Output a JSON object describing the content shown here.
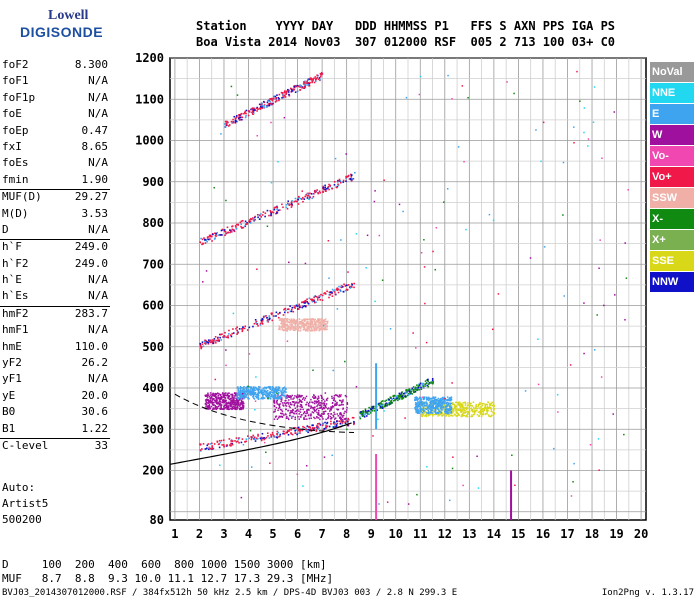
{
  "logo": {
    "line1": "Lowell",
    "line2": "DIGISONDE"
  },
  "header": {
    "line1": "Station    YYYY DAY   DDD HHMMSS P1   FFS S AXN PPS IGA PS",
    "line2": "Boa Vista 2014 Nov03  307 012000 RSF  005 2 713 100 03+ C0"
  },
  "params": [
    {
      "k": "foF2",
      "v": "8.300"
    },
    {
      "k": "foF1",
      "v": "N/A"
    },
    {
      "k": "foF1p",
      "v": "N/A"
    },
    {
      "k": "foE",
      "v": "N/A"
    },
    {
      "k": "foEp",
      "v": "0.47"
    },
    {
      "k": "fxI",
      "v": "8.65"
    },
    {
      "k": "foEs",
      "v": "N/A"
    },
    {
      "k": "fmin",
      "v": "1.90"
    },
    {
      "k": "MUF(D)",
      "v": "29.27"
    },
    {
      "k": "M(D)",
      "v": "3.53"
    },
    {
      "k": "D",
      "v": "N/A"
    },
    {
      "k": "h`F",
      "v": "249.0"
    },
    {
      "k": "h`F2",
      "v": "249.0"
    },
    {
      "k": "h`E",
      "v": "N/A"
    },
    {
      "k": "h`Es",
      "v": "N/A"
    },
    {
      "k": "hmF2",
      "v": "283.7"
    },
    {
      "k": "hmF1",
      "v": "N/A"
    },
    {
      "k": "hmE",
      "v": "110.0"
    },
    {
      "k": "yF2",
      "v": "26.2"
    },
    {
      "k": "yF1",
      "v": "N/A"
    },
    {
      "k": "yE",
      "v": "20.0"
    },
    {
      "k": "B0",
      "v": "30.6"
    },
    {
      "k": "B1",
      "v": "1.22"
    },
    {
      "k": "C-level",
      "v": "33"
    }
  ],
  "auto": {
    "l1": "Auto:",
    "l2": "Artist5",
    "l3": "500200"
  },
  "legend": [
    {
      "label": "NoVal",
      "color": "#999999"
    },
    {
      "label": "NNE",
      "color": "#22d8f0"
    },
    {
      "label": "E",
      "color": "#3fa4f0"
    },
    {
      "label": "W",
      "color": "#a0109e"
    },
    {
      "label": "Vo-",
      "color": "#f048b0"
    },
    {
      "label": "Vo+",
      "color": "#f01848"
    },
    {
      "label": "SSW",
      "color": "#f0b0a8"
    },
    {
      "label": "X-",
      "color": "#108a10"
    },
    {
      "label": "X+",
      "color": "#7ab050"
    },
    {
      "label": "SSE",
      "color": "#d8d818"
    },
    {
      "label": "NNW",
      "color": "#1010c8"
    }
  ],
  "muf_table": {
    "row1": "D     100  200  400  600  800 1000 1500 3000 [km]",
    "row2": "MUF   8.7  8.8  9.3 10.0 11.1 12.7 17.3 29.3 [MHz]"
  },
  "footer": "BVJ03_2014307012000.RSF / 384fx512h 50 kHz 2.5 km / DPS-4D BVJ03 003 / 2.8 N 299.3 E",
  "version": "Ion2Png v. 1.3.17",
  "chart_data": {
    "type": "scatter",
    "x_ticks": [
      1,
      2,
      3,
      4,
      5,
      6,
      7,
      8,
      9,
      10,
      11,
      12,
      13,
      14,
      15,
      16,
      17,
      18,
      19,
      20
    ],
    "y_ticks": [
      80,
      200,
      300,
      400,
      500,
      600,
      700,
      800,
      900,
      1000,
      1100,
      1200
    ],
    "xlim": [
      0.8,
      20.2
    ],
    "ylim": [
      80,
      1200
    ],
    "grid": true,
    "traces": [
      {
        "color": "#f01848",
        "segments": [
          [
            2.0,
            258,
            8.3,
            322
          ],
          [
            2.0,
            505,
            8.3,
            655
          ],
          [
            2.0,
            755,
            8.3,
            915
          ],
          [
            3.0,
            1040,
            7.0,
            1160
          ]
        ]
      },
      {
        "color": "#108a10",
        "segments": [
          [
            8.5,
            335,
            11.5,
            420
          ]
        ]
      },
      {
        "color": "#a0109e",
        "blobs": [
          [
            3.0,
            370,
            1.6,
            40
          ],
          [
            6.5,
            355,
            3.0,
            60
          ]
        ]
      },
      {
        "color": "#d8d818",
        "blobs": [
          [
            12.5,
            350,
            3.0,
            35
          ]
        ]
      },
      {
        "color": "#f0b0a8",
        "blobs": [
          [
            6.2,
            555,
            2.0,
            30
          ]
        ]
      },
      {
        "color": "#3fa4f0",
        "blobs": [
          [
            4.5,
            390,
            2.0,
            30
          ],
          [
            11.5,
            360,
            1.5,
            40
          ]
        ]
      }
    ]
  }
}
